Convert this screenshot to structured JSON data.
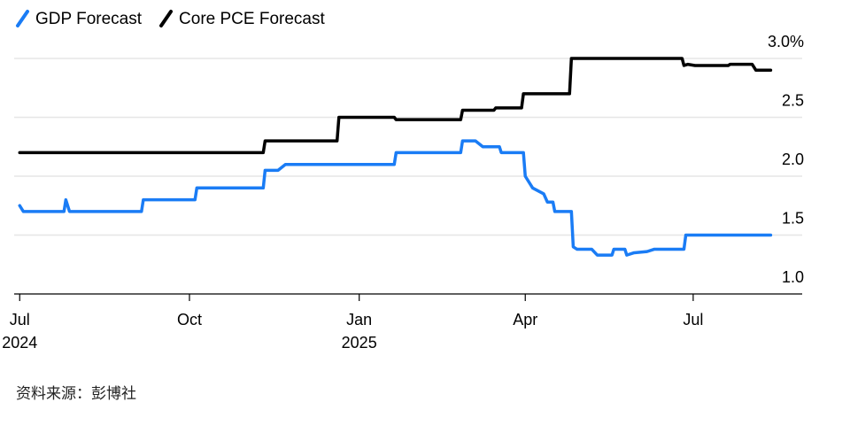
{
  "chart_data": {
    "type": "line",
    "title": "",
    "xlabel": "",
    "ylabel": "",
    "x_range": [
      "2024-06-28",
      "2025-08-31"
    ],
    "ylim": [
      1.0,
      3.0
    ],
    "y_ticks": [
      1.0,
      1.5,
      2.0,
      2.5,
      3.0
    ],
    "y_tick_labels": [
      "1.0",
      "1.5",
      "2.0",
      "2.5",
      "3.0%"
    ],
    "x_ticks": [
      {
        "date": "2024-07-01",
        "label": "Jul",
        "year": "2024"
      },
      {
        "date": "2024-10-01",
        "label": "Oct",
        "year": ""
      },
      {
        "date": "2025-01-01",
        "label": "Jan",
        "year": "2025"
      },
      {
        "date": "2025-04-01",
        "label": "Apr",
        "year": ""
      },
      {
        "date": "2025-07-01",
        "label": "Jul",
        "year": ""
      }
    ],
    "grid": true,
    "legend_position": "top-left",
    "series": [
      {
        "name": "GDP Forecast",
        "color": "#1a7cf5",
        "points": [
          [
            "2024-07-01",
            1.75
          ],
          [
            "2024-07-03",
            1.7
          ],
          [
            "2024-07-25",
            1.7
          ],
          [
            "2024-07-26",
            1.8
          ],
          [
            "2024-07-28",
            1.7
          ],
          [
            "2024-09-05",
            1.7
          ],
          [
            "2024-09-06",
            1.8
          ],
          [
            "2024-10-04",
            1.8
          ],
          [
            "2024-10-05",
            1.9
          ],
          [
            "2024-11-10",
            1.9
          ],
          [
            "2024-11-11",
            2.05
          ],
          [
            "2024-11-18",
            2.05
          ],
          [
            "2024-11-22",
            2.1
          ],
          [
            "2025-01-20",
            2.1
          ],
          [
            "2025-01-21",
            2.2
          ],
          [
            "2025-02-25",
            2.2
          ],
          [
            "2025-02-26",
            2.3
          ],
          [
            "2025-03-05",
            2.3
          ],
          [
            "2025-03-09",
            2.25
          ],
          [
            "2025-03-18",
            2.25
          ],
          [
            "2025-03-19",
            2.2
          ],
          [
            "2025-03-31",
            2.2
          ],
          [
            "2025-04-01",
            2.0
          ],
          [
            "2025-04-05",
            1.9
          ],
          [
            "2025-04-11",
            1.85
          ],
          [
            "2025-04-13",
            1.78
          ],
          [
            "2025-04-16",
            1.78
          ],
          [
            "2025-04-17",
            1.7
          ],
          [
            "2025-04-26",
            1.7
          ],
          [
            "2025-04-27",
            1.4
          ],
          [
            "2025-04-29",
            1.38
          ],
          [
            "2025-05-07",
            1.38
          ],
          [
            "2025-05-10",
            1.33
          ],
          [
            "2025-05-18",
            1.33
          ],
          [
            "2025-05-19",
            1.38
          ],
          [
            "2025-05-25",
            1.38
          ],
          [
            "2025-05-26",
            1.33
          ],
          [
            "2025-05-30",
            1.35
          ],
          [
            "2025-06-06",
            1.36
          ],
          [
            "2025-06-10",
            1.38
          ],
          [
            "2025-06-26",
            1.38
          ],
          [
            "2025-06-27",
            1.5
          ],
          [
            "2025-08-12",
            1.5
          ]
        ]
      },
      {
        "name": "Core PCE Forecast",
        "color": "#000000",
        "points": [
          [
            "2024-07-01",
            2.2
          ],
          [
            "2024-11-10",
            2.2
          ],
          [
            "2024-11-11",
            2.3
          ],
          [
            "2024-12-20",
            2.3
          ],
          [
            "2024-12-21",
            2.5
          ],
          [
            "2025-01-20",
            2.5
          ],
          [
            "2025-01-21",
            2.48
          ],
          [
            "2025-02-25",
            2.48
          ],
          [
            "2025-02-26",
            2.56
          ],
          [
            "2025-03-15",
            2.56
          ],
          [
            "2025-03-16",
            2.58
          ],
          [
            "2025-03-30",
            2.58
          ],
          [
            "2025-03-31",
            2.7
          ],
          [
            "2025-04-25",
            2.7
          ],
          [
            "2025-04-26",
            3.0
          ],
          [
            "2025-06-25",
            3.0
          ],
          [
            "2025-06-26",
            2.94
          ],
          [
            "2025-06-28",
            2.95
          ],
          [
            "2025-07-02",
            2.94
          ],
          [
            "2025-07-20",
            2.94
          ],
          [
            "2025-07-21",
            2.95
          ],
          [
            "2025-08-02",
            2.95
          ],
          [
            "2025-08-04",
            2.9
          ],
          [
            "2025-08-12",
            2.9
          ]
        ]
      }
    ]
  },
  "source": "资料来源：彭博社"
}
